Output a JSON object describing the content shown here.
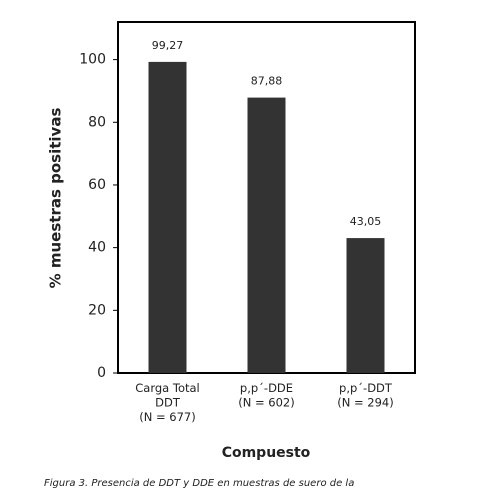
{
  "chart_data": {
    "type": "bar",
    "categories": [
      "Carga Total\nDDT\n(N = 677)",
      "p,p´-DDE\n(N = 602)",
      "p,p´-DDT\n(N = 294)"
    ],
    "values": [
      99.27,
      87.88,
      43.05
    ],
    "value_labels": [
      "99,27",
      "87,88",
      "43,05"
    ],
    "color": "#333333",
    "ylim": [
      0,
      112
    ],
    "yticks": [
      0,
      20,
      40,
      60,
      80,
      100
    ],
    "grid": false,
    "x_label": "Compuesto",
    "y_label": "% muestras positivas",
    "caption": "Figura 3. Presencia de DDT y DDE en muestras de suero de la"
  }
}
